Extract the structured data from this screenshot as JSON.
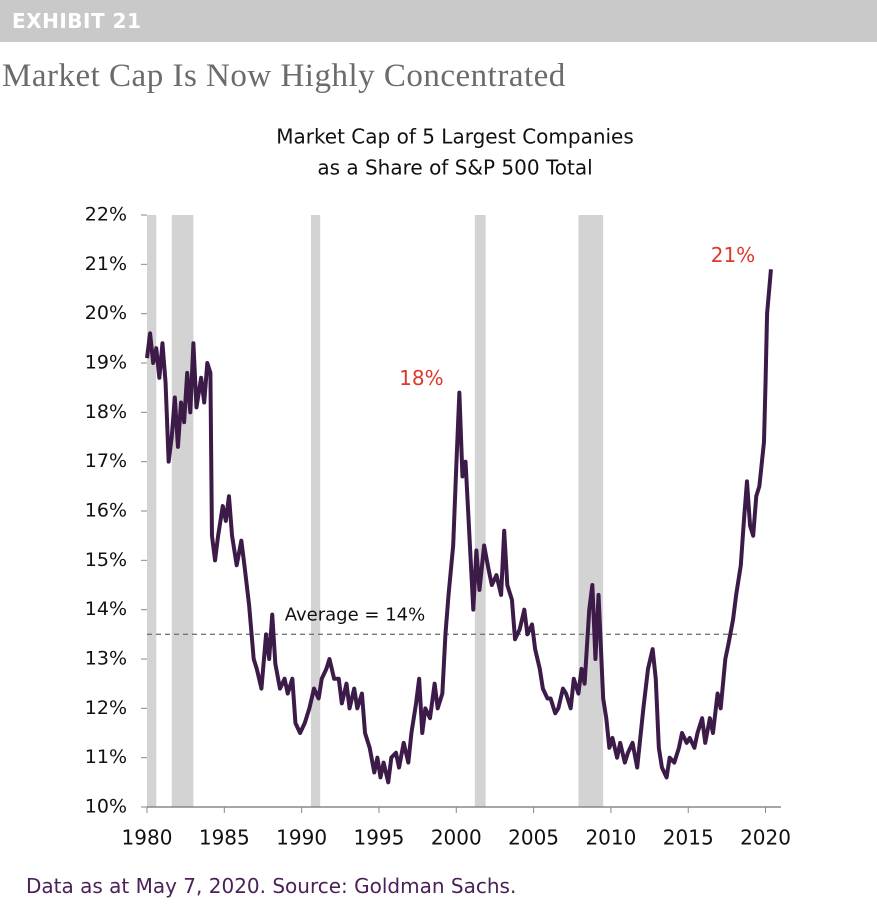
{
  "header": {
    "label": "EXHIBIT 21",
    "title": "Market Cap Is Now Highly Concentrated"
  },
  "footer": "Data as at May 7, 2020. Source: Goldman Sachs.",
  "chart_data": {
    "type": "line",
    "title": [
      "Market Cap of 5 Largest Companies",
      "as a Share of S&P 500 Total"
    ],
    "color": "#3d1b49",
    "x": [
      1980.0,
      1980.2,
      1980.4,
      1980.6,
      1980.8,
      1981.0,
      1981.2,
      1981.4,
      1981.6,
      1981.8,
      1982.0,
      1982.2,
      1982.4,
      1982.6,
      1982.8,
      1983.0,
      1983.2,
      1983.5,
      1983.7,
      1983.9,
      1984.1,
      1984.2,
      1984.4,
      1984.6,
      1984.9,
      1985.1,
      1985.3,
      1985.5,
      1985.8,
      1986.1,
      1986.3,
      1986.6,
      1986.9,
      1987.1,
      1987.4,
      1987.7,
      1987.9,
      1988.1,
      1988.3,
      1988.6,
      1988.9,
      1989.1,
      1989.4,
      1989.6,
      1989.9,
      1990.2,
      1990.5,
      1990.8,
      1991.1,
      1991.3,
      1991.6,
      1991.8,
      1992.1,
      1992.4,
      1992.6,
      1992.9,
      1993.1,
      1993.4,
      1993.6,
      1993.9,
      1994.1,
      1994.4,
      1994.7,
      1994.9,
      1995.1,
      1995.3,
      1995.6,
      1995.8,
      1996.1,
      1996.3,
      1996.6,
      1996.9,
      1997.1,
      1997.4,
      1997.6,
      1997.8,
      1998.0,
      1998.3,
      1998.6,
      1998.8,
      1999.1,
      1999.3,
      1999.5,
      1999.8,
      2000.0,
      2000.2,
      2000.4,
      2000.6,
      2000.9,
      2001.1,
      2001.3,
      2001.5,
      2001.8,
      2002.1,
      2002.3,
      2002.6,
      2002.9,
      2003.1,
      2003.3,
      2003.6,
      2003.8,
      2004.1,
      2004.4,
      2004.6,
      2004.9,
      2005.1,
      2005.4,
      2005.6,
      2005.9,
      2006.1,
      2006.4,
      2006.6,
      2006.9,
      2007.1,
      2007.4,
      2007.6,
      2007.9,
      2008.1,
      2008.3,
      2008.6,
      2008.8,
      2009.0,
      2009.2,
      2009.5,
      2009.7,
      2009.9,
      2010.1,
      2010.4,
      2010.6,
      2010.9,
      2011.1,
      2011.4,
      2011.7,
      2011.9,
      2012.1,
      2012.4,
      2012.7,
      2012.9,
      2013.1,
      2013.3,
      2013.6,
      2013.8,
      2014.1,
      2014.4,
      2014.6,
      2014.9,
      2015.1,
      2015.4,
      2015.6,
      2015.9,
      2016.1,
      2016.4,
      2016.6,
      2016.9,
      2017.1,
      2017.4,
      2017.6,
      2017.9,
      2018.1,
      2018.4,
      2018.6,
      2018.8,
      2019.0,
      2019.2,
      2019.4,
      2019.6,
      2019.9,
      2020.0,
      2020.1,
      2020.35
    ],
    "values": [
      19.1,
      19.6,
      19.0,
      19.3,
      18.7,
      19.4,
      18.6,
      17.0,
      17.5,
      18.3,
      17.3,
      18.2,
      17.8,
      18.8,
      18.0,
      19.4,
      18.1,
      18.7,
      18.2,
      19.0,
      18.8,
      15.5,
      15.0,
      15.5,
      16.1,
      15.8,
      16.3,
      15.5,
      14.9,
      15.4,
      14.9,
      14.1,
      13.0,
      12.8,
      12.4,
      13.5,
      13.0,
      13.9,
      12.9,
      12.4,
      12.6,
      12.3,
      12.6,
      11.7,
      11.5,
      11.7,
      12.0,
      12.4,
      12.2,
      12.6,
      12.8,
      13.0,
      12.6,
      12.6,
      12.1,
      12.5,
      12.0,
      12.4,
      12.0,
      12.3,
      11.5,
      11.2,
      10.7,
      11.0,
      10.6,
      10.9,
      10.5,
      11.0,
      11.1,
      10.8,
      11.3,
      10.9,
      11.5,
      12.1,
      12.6,
      11.5,
      12.0,
      11.8,
      12.5,
      12.0,
      12.3,
      13.5,
      14.3,
      15.3,
      16.9,
      18.4,
      16.7,
      17.0,
      15.2,
      14.0,
      15.2,
      14.4,
      15.3,
      14.8,
      14.5,
      14.7,
      14.3,
      15.6,
      14.5,
      14.2,
      13.4,
      13.6,
      14.0,
      13.5,
      13.7,
      13.2,
      12.8,
      12.4,
      12.2,
      12.2,
      11.9,
      12.0,
      12.4,
      12.3,
      12.0,
      12.6,
      12.3,
      12.8,
      12.5,
      14.0,
      14.5,
      13.0,
      14.3,
      12.2,
      11.8,
      11.2,
      11.4,
      11.0,
      11.3,
      10.9,
      11.1,
      11.3,
      10.8,
      11.4,
      12.0,
      12.8,
      13.2,
      12.6,
      11.2,
      10.8,
      10.6,
      11.0,
      10.9,
      11.2,
      11.5,
      11.3,
      11.4,
      11.2,
      11.5,
      11.8,
      11.3,
      11.8,
      11.5,
      12.3,
      12.0,
      13.0,
      13.3,
      13.8,
      14.3,
      14.9,
      15.8,
      16.6,
      15.7,
      15.5,
      16.3,
      16.5,
      17.4,
      18.6,
      20.0,
      20.9
    ],
    "xlim": [
      1980,
      2021
    ],
    "xticks": [
      1980,
      1985,
      1990,
      1995,
      2000,
      2005,
      2010,
      2015,
      2020
    ],
    "ylim": [
      10,
      22
    ],
    "yticks": [
      {
        "value": 10,
        "label": "10%"
      },
      {
        "value": 11,
        "label": "11%"
      },
      {
        "value": 12,
        "label": "12%"
      },
      {
        "value": 13,
        "label": "13%"
      },
      {
        "value": 14,
        "label": "14%"
      },
      {
        "value": 15,
        "label": "15%"
      },
      {
        "value": 16,
        "label": "16%"
      },
      {
        "value": 17,
        "label": "17%"
      },
      {
        "value": 18,
        "label": "18%"
      },
      {
        "value": 19,
        "label": "19%"
      },
      {
        "value": 20,
        "label": "20%"
      },
      {
        "value": 21,
        "label": "21%"
      },
      {
        "value": 22,
        "label": "22%"
      }
    ],
    "shaded_periods": [
      [
        1980.0,
        1980.6
      ],
      [
        1981.6,
        1983.0
      ],
      [
        1990.6,
        1991.2
      ],
      [
        2001.2,
        2001.9
      ],
      [
        2007.9,
        2009.5
      ]
    ],
    "shade_color": "#d3d3d3",
    "average_line": {
      "value": 13.5,
      "label": "Average = 14%"
    },
    "annotations": [
      {
        "text": "18%",
        "x": 2000.2,
        "y": 18.4
      },
      {
        "text": "21%",
        "x": 2020.35,
        "y": 20.9
      }
    ],
    "annotation_color": "#e0372b"
  }
}
